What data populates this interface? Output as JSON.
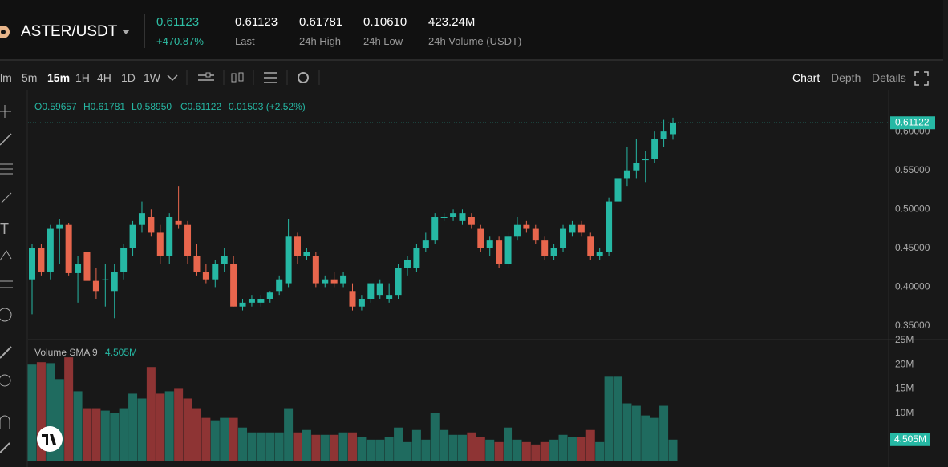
{
  "header": {
    "pair": "ASTER/USDT",
    "price": "0.61123",
    "change": "+470.87%",
    "stats": [
      {
        "value": "0.61123",
        "label": "Last"
      },
      {
        "value": "0.61781",
        "label": "24h High"
      },
      {
        "value": "0.10610",
        "label": "24h Low"
      },
      {
        "value": "423.24M",
        "label": "24h Volume (USDT)"
      }
    ]
  },
  "toolbar": {
    "intervals": [
      "lm",
      "5m",
      "15m",
      "1H",
      "4H",
      "1D",
      "1W"
    ],
    "active": "15m",
    "views": [
      "Chart",
      "Depth",
      "Details"
    ],
    "active_view": "Chart"
  },
  "chart_data": {
    "type": "candlestick",
    "ohlc_text": [
      "O0.59657",
      "H0.61781",
      "L0.58950",
      "C0.61122",
      "0.01503 (+2.52%)"
    ],
    "last_price": 0.61122,
    "up_color": "#26b8a4",
    "down_color": "#e8664d",
    "ylim": [
      0.3325,
      0.6475
    ],
    "yticks": [
      {
        "value": 0.35,
        "label": "0.35000"
      },
      {
        "value": 0.4,
        "label": "0.40000"
      },
      {
        "value": 0.45,
        "label": "0.45000"
      },
      {
        "value": 0.5,
        "label": "0.50000"
      },
      {
        "value": 0.55,
        "label": "0.55000"
      },
      {
        "value": 0.6,
        "label": "0.60000"
      }
    ],
    "open": [
      0.41,
      0.45,
      0.42,
      0.475,
      0.48,
      0.418,
      0.445,
      0.408,
      0.41,
      0.395,
      0.42,
      0.45,
      0.48,
      0.49,
      0.47,
      0.44,
      0.485,
      0.48,
      0.44,
      0.42,
      0.41,
      0.43,
      0.43,
      0.375,
      0.38,
      0.38,
      0.385,
      0.395,
      0.405,
      0.465,
      0.44,
      0.44,
      0.405,
      0.41,
      0.405,
      0.395,
      0.375,
      0.385,
      0.39,
      0.385,
      0.39,
      0.425,
      0.425,
      0.45,
      0.46,
      0.49,
      0.49,
      0.485,
      0.49,
      0.475,
      0.45,
      0.46,
      0.43,
      0.465,
      0.48,
      0.475,
      0.46,
      0.44,
      0.45,
      0.47,
      0.48,
      0.465,
      0.44,
      0.445,
      0.51,
      0.54,
      0.55,
      0.563,
      0.565,
      0.59,
      0.59657
    ],
    "high": [
      0.455,
      0.455,
      0.48,
      0.487,
      0.482,
      0.44,
      0.452,
      0.425,
      0.43,
      0.43,
      0.455,
      0.485,
      0.51,
      0.5,
      0.48,
      0.495,
      0.53,
      0.485,
      0.455,
      0.43,
      0.435,
      0.45,
      0.44,
      0.385,
      0.39,
      0.39,
      0.395,
      0.415,
      0.487,
      0.47,
      0.45,
      0.445,
      0.415,
      0.42,
      0.42,
      0.405,
      0.39,
      0.405,
      0.41,
      0.405,
      0.43,
      0.44,
      0.455,
      0.47,
      0.495,
      0.495,
      0.5,
      0.5,
      0.495,
      0.48,
      0.465,
      0.465,
      0.47,
      0.49,
      0.485,
      0.48,
      0.465,
      0.455,
      0.48,
      0.485,
      0.485,
      0.47,
      0.45,
      0.515,
      0.565,
      0.58,
      0.59,
      0.575,
      0.6,
      0.615,
      0.61781
    ],
    "low": [
      0.365,
      0.415,
      0.41,
      0.43,
      0.415,
      0.38,
      0.4,
      0.385,
      0.375,
      0.36,
      0.41,
      0.44,
      0.47,
      0.465,
      0.43,
      0.43,
      0.475,
      0.43,
      0.415,
      0.405,
      0.4,
      0.42,
      0.375,
      0.37,
      0.375,
      0.375,
      0.38,
      0.39,
      0.4,
      0.43,
      0.435,
      0.4,
      0.4,
      0.4,
      0.4,
      0.37,
      0.37,
      0.38,
      0.385,
      0.38,
      0.385,
      0.415,
      0.42,
      0.445,
      0.455,
      0.485,
      0.485,
      0.48,
      0.475,
      0.445,
      0.44,
      0.425,
      0.425,
      0.46,
      0.47,
      0.455,
      0.435,
      0.435,
      0.445,
      0.465,
      0.465,
      0.435,
      0.435,
      0.44,
      0.505,
      0.53,
      0.54,
      0.535,
      0.56,
      0.58,
      0.5895
    ],
    "close": [
      0.45,
      0.42,
      0.475,
      0.48,
      0.418,
      0.43,
      0.408,
      0.395,
      0.41,
      0.42,
      0.45,
      0.48,
      0.495,
      0.47,
      0.44,
      0.49,
      0.48,
      0.44,
      0.42,
      0.41,
      0.43,
      0.44,
      0.375,
      0.38,
      0.385,
      0.385,
      0.393,
      0.41,
      0.465,
      0.44,
      0.445,
      0.405,
      0.41,
      0.405,
      0.415,
      0.375,
      0.385,
      0.405,
      0.405,
      0.39,
      0.425,
      0.435,
      0.45,
      0.46,
      0.49,
      0.49,
      0.495,
      0.495,
      0.48,
      0.45,
      0.46,
      0.43,
      0.465,
      0.48,
      0.475,
      0.46,
      0.44,
      0.45,
      0.475,
      0.48,
      0.47,
      0.44,
      0.445,
      0.51,
      0.54,
      0.55,
      0.56,
      0.565,
      0.59,
      0.6,
      0.61122
    ],
    "volume": {
      "name": "Volume SMA 9",
      "current_label": "4.505M",
      "values": [
        20,
        20.5,
        20.3,
        17,
        21.5,
        14.5,
        11,
        11,
        10.5,
        10,
        11,
        14,
        13,
        19.5,
        14,
        14.5,
        15,
        13,
        11,
        9,
        8.5,
        9,
        9,
        7,
        6,
        6,
        6,
        6,
        11,
        6,
        6.5,
        5.5,
        5.5,
        5.5,
        6,
        6,
        5,
        4.5,
        4.5,
        5,
        7,
        4,
        6.5,
        4.5,
        10,
        6.5,
        5.5,
        5.5,
        6,
        5,
        4.5,
        4,
        7,
        4.5,
        4,
        3.5,
        4,
        4.5,
        5.5,
        5,
        5,
        6.5,
        4,
        17.5,
        17.5,
        12,
        11.5,
        9.5,
        9,
        11.5,
        4.505
      ],
      "ylim": [
        0,
        25
      ],
      "yticks": [
        {
          "value": 10,
          "label": "10M"
        },
        {
          "value": 15,
          "label": "15M"
        },
        {
          "value": 20,
          "label": "20M"
        },
        {
          "value": 25,
          "label": "25M"
        }
      ]
    }
  }
}
